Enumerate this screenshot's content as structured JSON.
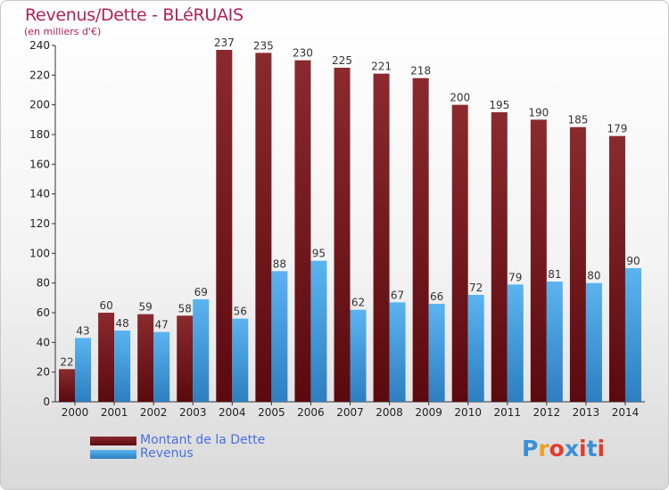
{
  "title": "Revenus/Dette - BLéRUAIS",
  "subtitle": "(en milliers d'€)",
  "colors": {
    "dette_top": "#8a2a2e",
    "dette_bottom": "#5a0a0e",
    "revenus_top": "#5ab4f0",
    "revenus_bottom": "#2d7fc0",
    "title": "#b21f5a",
    "legend_text": "#4a6fe0"
  },
  "legend": {
    "dette_label": "Montant de la Dette",
    "revenus_label": "Revenus"
  },
  "logo": {
    "text": "Proxiti",
    "letter_colors": [
      "#3a8fd6",
      "#f0a020",
      "#e53a2a",
      "#3a8fd6",
      "#e53a2a",
      "#3a8fd6",
      "#e53a2a"
    ]
  },
  "chart_data": {
    "type": "bar",
    "categories": [
      "2000",
      "2001",
      "2002",
      "2003",
      "2004",
      "2005",
      "2006",
      "2007",
      "2008",
      "2009",
      "2010",
      "2011",
      "2012",
      "2013",
      "2014"
    ],
    "series": [
      {
        "name": "Montant de la Dette",
        "values": [
          22,
          60,
          59,
          58,
          237,
          235,
          230,
          225,
          221,
          218,
          200,
          195,
          190,
          185,
          179
        ]
      },
      {
        "name": "Revenus",
        "values": [
          43,
          48,
          47,
          69,
          56,
          88,
          95,
          62,
          67,
          66,
          72,
          79,
          81,
          80,
          90
        ]
      }
    ],
    "ylim": [
      0,
      240
    ],
    "yticks": [
      0,
      20,
      40,
      60,
      80,
      100,
      120,
      140,
      160,
      180,
      200,
      220,
      240
    ],
    "grid": false,
    "legend_position": "bottom-left"
  }
}
